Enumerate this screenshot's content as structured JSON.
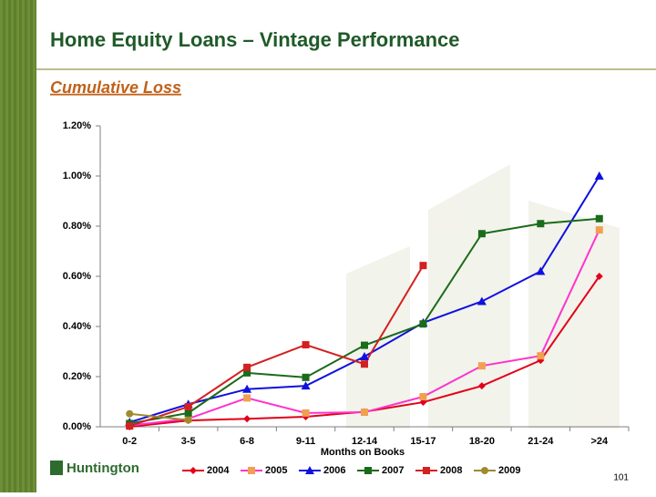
{
  "slide": {
    "title": "Home Equity Loans – Vintage Performance",
    "subtitle": "Cumulative Loss",
    "logo": "Huntington",
    "page_number": "101"
  },
  "chart_data": {
    "type": "line",
    "x_label": "Months on Books",
    "categories": [
      "0-2",
      "3-5",
      "6-8",
      "9-11",
      "12-14",
      "15-17",
      "18-20",
      "21-24",
      ">24"
    ],
    "series": [
      {
        "name": "2004",
        "color": "#e2001a",
        "marker_color": "#e2001a",
        "marker": "diamond",
        "values": [
          0.0,
          0.025,
          0.032,
          0.04,
          0.06,
          0.098,
          0.163,
          0.265,
          0.6
        ]
      },
      {
        "name": "2005",
        "color": "#ff33cc",
        "marker_color": "#f0a050",
        "marker": "square",
        "values": [
          0.005,
          0.032,
          0.115,
          0.055,
          0.058,
          0.12,
          0.243,
          0.283,
          0.785
        ]
      },
      {
        "name": "2006",
        "color": "#1010e0",
        "marker_color": "#1010e0",
        "marker": "triangle",
        "values": [
          0.018,
          0.09,
          0.15,
          0.163,
          0.28,
          0.415,
          0.5,
          0.62,
          1.0
        ]
      },
      {
        "name": "2007",
        "color": "#1a6b1a",
        "marker_color": "#1a6b1a",
        "marker": "square",
        "values": [
          0.013,
          0.055,
          0.215,
          0.197,
          0.325,
          0.41,
          0.77,
          0.81,
          0.83
        ]
      },
      {
        "name": "2008",
        "color": "#d42020",
        "marker_color": "#d42020",
        "marker": "square",
        "values": [
          0.003,
          0.08,
          0.237,
          0.327,
          0.25,
          0.643,
          null,
          null,
          null
        ]
      },
      {
        "name": "2009",
        "color": "#a08a30",
        "marker_color": "#a08a30",
        "marker": "circle",
        "values": [
          0.052,
          0.027,
          null,
          null,
          null,
          null,
          null,
          null,
          null
        ]
      }
    ],
    "ylim": [
      0,
      1.2
    ],
    "yticks": [
      {
        "value": 0,
        "label": "0.00%"
      },
      {
        "value": 0.2,
        "label": "0.20%"
      },
      {
        "value": 0.4,
        "label": "0.40%"
      },
      {
        "value": 0.6,
        "label": "0.60%"
      },
      {
        "value": 0.8,
        "label": "0.80%"
      },
      {
        "value": 1.0,
        "label": "1.00%"
      },
      {
        "value": 1.2,
        "label": "1.20%"
      }
    ],
    "grid": false,
    "legend": "bottom"
  }
}
